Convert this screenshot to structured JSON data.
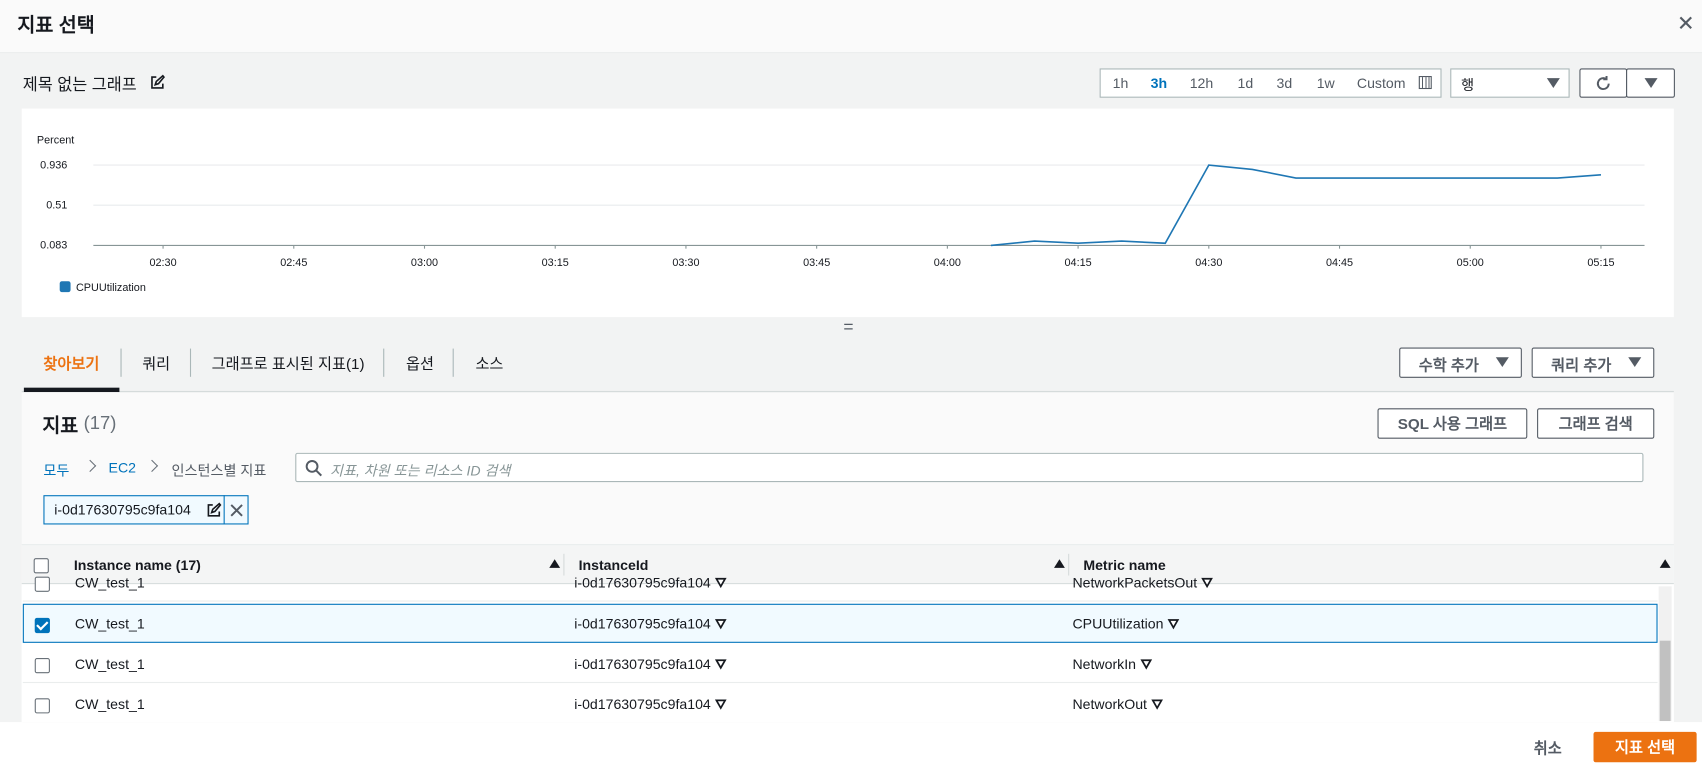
{
  "header": {
    "title": "지표 선택"
  },
  "graph": {
    "title": "제목 없는 그래프",
    "time_ranges": [
      "1h",
      "3h",
      "12h",
      "1d",
      "3d",
      "1w",
      "Custom"
    ],
    "active_range": 1,
    "view": "행"
  },
  "chart_data": {
    "type": "line",
    "y_label": "Percent",
    "x": [
      "04:05",
      "04:10",
      "04:15",
      "04:20",
      "04:25",
      "04:30",
      "04:35",
      "04:40",
      "04:45",
      "04:50",
      "04:55",
      "05:00",
      "05:05",
      "05:10",
      "05:15"
    ],
    "series": [
      {
        "name": "CPUUtilization",
        "color": "#1f77b4",
        "values": [
          0.083,
          0.129,
          0.106,
          0.129,
          0.106,
          0.936,
          0.89,
          0.798,
          0.798,
          0.798,
          0.798,
          0.798,
          0.798,
          0.798,
          0.832
        ]
      }
    ],
    "xlim": [
      "02:22",
      "05:20"
    ],
    "xticks": [
      "02:30",
      "02:45",
      "03:00",
      "03:15",
      "03:30",
      "03:45",
      "04:00",
      "04:15",
      "04:30",
      "04:45",
      "05:00",
      "05:15"
    ],
    "ylim": [
      0.083,
      0.936
    ],
    "yticks": [
      0.083,
      0.51,
      0.936
    ],
    "grid": true
  },
  "tabs": {
    "items": [
      "찾아보기",
      "쿼리",
      "그래프로 표시된 지표(1)",
      "옵션",
      "소스"
    ],
    "active": 0,
    "actions": [
      "수학 추가",
      "쿼리 추가"
    ]
  },
  "metrics": {
    "title": "지표",
    "count": "(17)",
    "buttons": [
      "SQL 사용 그래프",
      "그래프 검색"
    ],
    "breadcrumb": [
      "모두",
      "EC2",
      "인스턴스별 지표"
    ],
    "search_placeholder": "지표, 차원 또는 리소스 ID 검색",
    "filter_token": "i-0d17630795c9fa104"
  },
  "table": {
    "columns": [
      "Instance name (17)",
      "InstanceId",
      "Metric name"
    ],
    "rows": [
      {
        "cells": [
          "CW_test_1",
          "i-0d17630795c9fa104",
          "NetworkPacketsOut"
        ],
        "checked": false
      },
      {
        "cells": [
          "CW_test_1",
          "i-0d17630795c9fa104",
          "CPUUtilization"
        ],
        "checked": true
      },
      {
        "cells": [
          "CW_test_1",
          "i-0d17630795c9fa104",
          "NetworkIn"
        ],
        "checked": false
      },
      {
        "cells": [
          "CW_test_1",
          "i-0d17630795c9fa104",
          "NetworkOut"
        ],
        "checked": false
      }
    ]
  },
  "footer": {
    "cancel": "취소",
    "confirm": "지표 선택"
  }
}
